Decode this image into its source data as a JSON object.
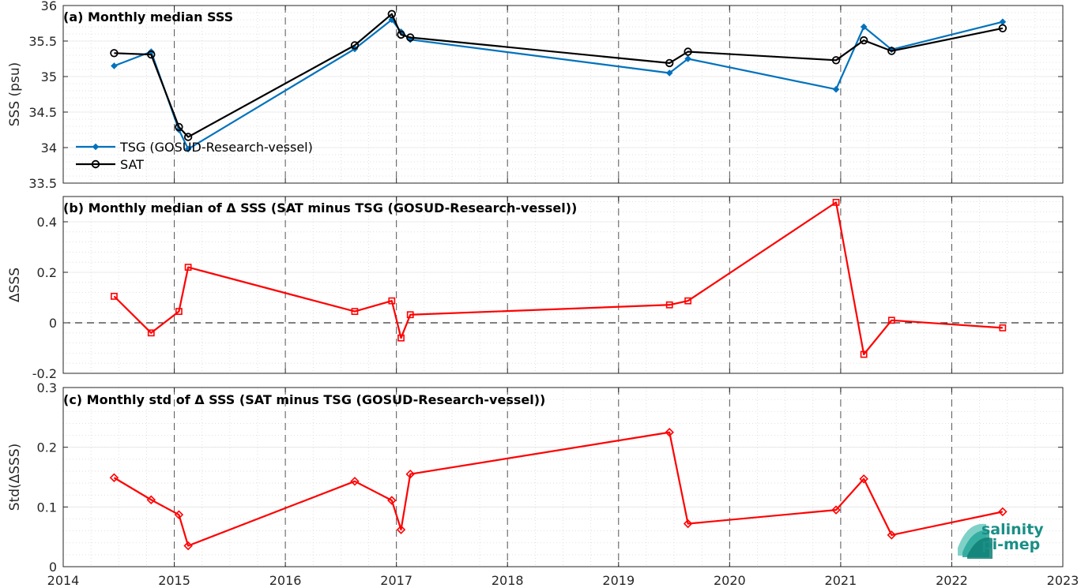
{
  "x_axis": {
    "range": [
      2014,
      2023
    ],
    "ticks": [
      2014,
      2015,
      2016,
      2017,
      2018,
      2019,
      2020,
      2021,
      2022,
      2023
    ],
    "tick_labels": [
      "2014",
      "2015",
      "2016",
      "2017",
      "2018",
      "2019",
      "2020",
      "2021",
      "2022",
      "2023"
    ]
  },
  "chart_data": [
    {
      "type": "line",
      "title": "(a) Monthly median SSS",
      "ylabel": "SSS (psu)",
      "ylim": [
        33.5,
        36
      ],
      "yticks": [
        33.5,
        34,
        34.5,
        35,
        35.5,
        36
      ],
      "ytick_labels": [
        "33.5",
        "34",
        "34.5",
        "35",
        "35.5",
        "36"
      ],
      "grid": true,
      "legend_position": "bottom-left",
      "series": [
        {
          "name": "TSG (GOSUD-Research-vessel)",
          "color": "#0072BD",
          "marker": "diamond-filled",
          "x": [
            "2014-06",
            "2014-10",
            "2015-01",
            "2015-02",
            "2016-08",
            "2016-12",
            "2017-01",
            "2017-02",
            "2019-06",
            "2019-08",
            "2020-12",
            "2021-03",
            "2021-06",
            "2022-06"
          ],
          "values": [
            35.15,
            35.35,
            34.25,
            33.98,
            35.39,
            35.8,
            35.63,
            35.52,
            35.05,
            35.25,
            34.82,
            35.7,
            35.38,
            35.77
          ]
        },
        {
          "name": "SAT",
          "color": "#000000",
          "marker": "circle-open",
          "x": [
            "2014-06",
            "2014-10",
            "2015-01",
            "2015-02",
            "2016-08",
            "2016-12",
            "2017-01",
            "2017-02",
            "2019-06",
            "2019-08",
            "2020-12",
            "2021-03",
            "2021-06",
            "2022-06"
          ],
          "values": [
            35.33,
            35.31,
            34.29,
            34.15,
            35.44,
            35.88,
            35.59,
            35.55,
            35.19,
            35.35,
            35.23,
            35.51,
            35.36,
            35.68
          ]
        }
      ]
    },
    {
      "type": "line",
      "title": "(b) Monthly median of Δ SSS (SAT minus TSG (GOSUD-Research-vessel))",
      "ylabel": "ΔSSS",
      "ylim": [
        -0.2,
        0.5
      ],
      "yticks": [
        -0.2,
        0,
        0.2,
        0.4
      ],
      "ytick_labels": [
        "-0.2",
        "0",
        "0.2",
        "0.4"
      ],
      "grid": true,
      "reference_line": 0,
      "series": [
        {
          "color": "#FF0000",
          "marker": "square-open",
          "x": [
            "2014-06",
            "2014-10",
            "2015-01",
            "2015-02",
            "2016-08",
            "2016-12",
            "2017-01",
            "2017-02",
            "2019-06",
            "2019-08",
            "2020-12",
            "2021-03",
            "2021-06",
            "2022-06"
          ],
          "values": [
            0.105,
            -0.04,
            0.045,
            0.22,
            0.045,
            0.087,
            -0.06,
            0.032,
            0.071,
            0.087,
            0.477,
            -0.125,
            0.01,
            -0.02
          ]
        }
      ]
    },
    {
      "type": "line",
      "title": "(c) Monthly std of Δ SSS (SAT minus TSG (GOSUD-Research-vessel))",
      "ylabel": "Std(ΔSSS)",
      "ylim": [
        0,
        0.3
      ],
      "yticks": [
        0,
        0.1,
        0.2,
        0.3
      ],
      "ytick_labels": [
        "0",
        "0.1",
        "0.2",
        "0.3"
      ],
      "grid": true,
      "series": [
        {
          "color": "#FF0000",
          "marker": "diamond-open",
          "x": [
            "2014-06",
            "2014-10",
            "2015-01",
            "2015-02",
            "2016-08",
            "2016-12",
            "2017-01",
            "2017-02",
            "2019-06",
            "2019-08",
            "2020-12",
            "2021-03",
            "2021-06",
            "2022-06"
          ],
          "values": [
            0.149,
            0.112,
            0.087,
            0.035,
            0.143,
            0.111,
            0.062,
            0.155,
            0.225,
            0.072,
            0.095,
            0.147,
            0.053,
            0.092
          ]
        }
      ]
    }
  ],
  "logo": {
    "line1": "salinity",
    "line2": "pi-mep",
    "color": "#1a8f86"
  }
}
